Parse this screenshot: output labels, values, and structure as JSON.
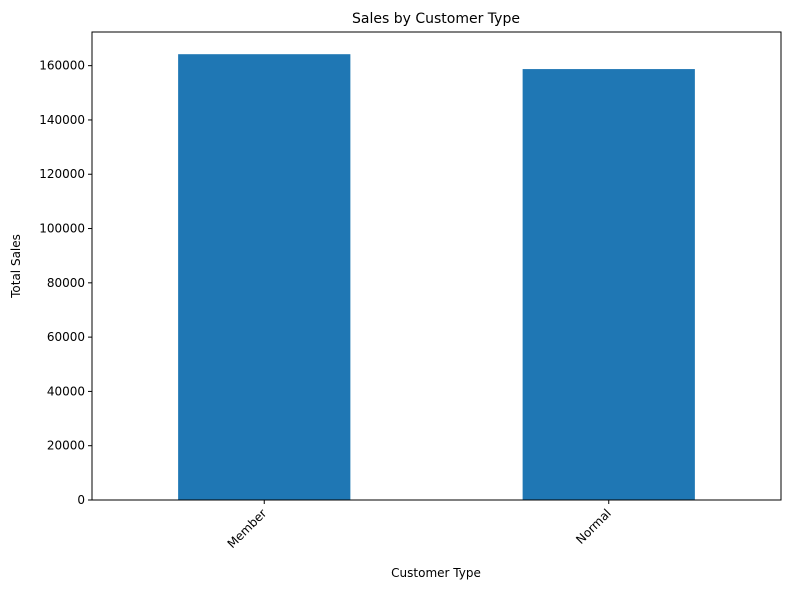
{
  "chart_data": {
    "type": "bar",
    "title": "Sales by Customer Type",
    "xlabel": "Customer Type",
    "ylabel": "Total Sales",
    "categories": [
      "Member",
      "Normal"
    ],
    "values": [
      164223,
      158743
    ],
    "ylim": [
      0,
      172400
    ],
    "yticks": [
      0,
      20000,
      40000,
      60000,
      80000,
      100000,
      120000,
      140000,
      160000
    ],
    "ytick_labels": [
      "0",
      "20000",
      "40000",
      "60000",
      "80000",
      "100000",
      "120000",
      "140000",
      "160000"
    ],
    "bar_color": "#1f77b4",
    "grid": false,
    "legend": "none"
  }
}
